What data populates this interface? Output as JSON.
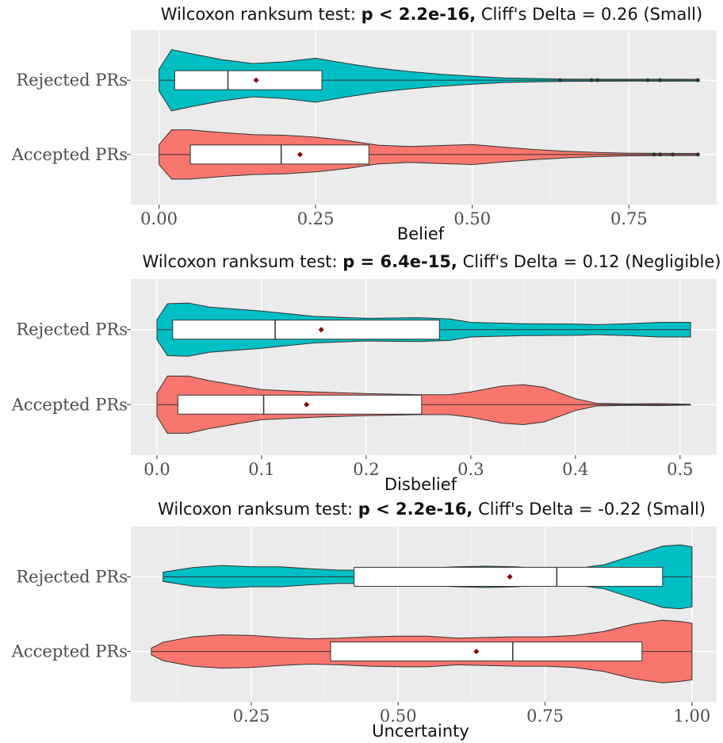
{
  "colors": {
    "rejected": "#00BFC4",
    "accepted": "#F8766D",
    "mean_marker": "#8B0000"
  },
  "chart_data": [
    {
      "type": "violin",
      "title": {
        "prefix": "Wilcoxon ranksum test: ",
        "bold": "p < 2.2e-16,",
        "suffix": " Cliff's Delta = 0.26 (Small)"
      },
      "xlabel": "Belief",
      "xlim": [
        -0.045,
        0.89
      ],
      "ticks": [
        0,
        0.25,
        0.5,
        0.75
      ],
      "tick_labels": [
        "0.00",
        "0.25",
        "0.50",
        "0.75"
      ],
      "grid": true,
      "groups": [
        {
          "name": "Rejected PRs",
          "color": "#00BFC4",
          "violin": [
            [
              0.0,
              0.33
            ],
            [
              0.02,
              0.92
            ],
            [
              0.05,
              0.8
            ],
            [
              0.1,
              0.62
            ],
            [
              0.15,
              0.5
            ],
            [
              0.2,
              0.55
            ],
            [
              0.25,
              0.66
            ],
            [
              0.3,
              0.5
            ],
            [
              0.35,
              0.36
            ],
            [
              0.4,
              0.26
            ],
            [
              0.45,
              0.18
            ],
            [
              0.5,
              0.12
            ],
            [
              0.55,
              0.07
            ],
            [
              0.6,
              0.05
            ],
            [
              0.65,
              0.035
            ],
            [
              0.7,
              0.03
            ],
            [
              0.75,
              0.028
            ],
            [
              0.8,
              0.03
            ],
            [
              0.86,
              0.025
            ]
          ],
          "box": {
            "q1": 0.025,
            "median": 0.11,
            "q3": 0.26,
            "mean": 0.155
          },
          "whiskers": [
            0.0,
            0.86
          ],
          "outliers": [
            0.64,
            0.69,
            0.7,
            0.78,
            0.8,
            0.86
          ]
        },
        {
          "name": "Accepted PRs",
          "color": "#F8766D",
          "violin": [
            [
              0.0,
              0.3
            ],
            [
              0.02,
              0.74
            ],
            [
              0.05,
              0.74
            ],
            [
              0.1,
              0.66
            ],
            [
              0.15,
              0.6
            ],
            [
              0.2,
              0.58
            ],
            [
              0.25,
              0.52
            ],
            [
              0.3,
              0.42
            ],
            [
              0.35,
              0.28
            ],
            [
              0.4,
              0.24
            ],
            [
              0.45,
              0.27
            ],
            [
              0.5,
              0.3
            ],
            [
              0.55,
              0.22
            ],
            [
              0.6,
              0.15
            ],
            [
              0.65,
              0.1
            ],
            [
              0.7,
              0.06
            ],
            [
              0.75,
              0.04
            ],
            [
              0.8,
              0.035
            ],
            [
              0.86,
              0.03
            ]
          ],
          "box": {
            "q1": 0.05,
            "median": 0.195,
            "q3": 0.335,
            "mean": 0.225
          },
          "whiskers": [
            0.0,
            0.86
          ],
          "outliers": [
            0.79,
            0.8,
            0.82,
            0.86
          ]
        }
      ]
    },
    {
      "type": "violin",
      "title": {
        "prefix": "Wilcoxon ranksum test: ",
        "bold": "p = 6.4e-15,",
        "suffix": " Cliff's Delta = 0.12 (Negligible)"
      },
      "xlabel": "Disbelief",
      "xlim": [
        -0.025,
        0.535
      ],
      "ticks": [
        0,
        0.1,
        0.2,
        0.3,
        0.4,
        0.5
      ],
      "tick_labels": [
        "0.0",
        "0.1",
        "0.2",
        "0.3",
        "0.4",
        "0.5"
      ],
      "grid": true,
      "groups": [
        {
          "name": "Rejected PRs",
          "color": "#00BFC4",
          "violin": [
            [
              0.0,
              0.3
            ],
            [
              0.01,
              0.78
            ],
            [
              0.03,
              0.8
            ],
            [
              0.05,
              0.68
            ],
            [
              0.1,
              0.56
            ],
            [
              0.15,
              0.4
            ],
            [
              0.2,
              0.34
            ],
            [
              0.25,
              0.36
            ],
            [
              0.28,
              0.32
            ],
            [
              0.3,
              0.22
            ],
            [
              0.35,
              0.18
            ],
            [
              0.4,
              0.17
            ],
            [
              0.42,
              0.15
            ],
            [
              0.45,
              0.18
            ],
            [
              0.48,
              0.22
            ],
            [
              0.51,
              0.22
            ]
          ],
          "box": {
            "q1": 0.015,
            "median": 0.113,
            "q3": 0.27,
            "mean": 0.157
          },
          "whiskers": [
            0.0,
            0.51
          ],
          "outliers": []
        },
        {
          "name": "Accepted PRs",
          "color": "#F8766D",
          "violin": [
            [
              0.0,
              0.35
            ],
            [
              0.01,
              0.86
            ],
            [
              0.03,
              0.86
            ],
            [
              0.05,
              0.72
            ],
            [
              0.08,
              0.56
            ],
            [
              0.1,
              0.45
            ],
            [
              0.15,
              0.38
            ],
            [
              0.2,
              0.33
            ],
            [
              0.25,
              0.3
            ],
            [
              0.28,
              0.3
            ],
            [
              0.3,
              0.38
            ],
            [
              0.33,
              0.56
            ],
            [
              0.35,
              0.6
            ],
            [
              0.37,
              0.52
            ],
            [
              0.4,
              0.18
            ],
            [
              0.42,
              0.04
            ],
            [
              0.45,
              0.02
            ],
            [
              0.48,
              0.03
            ],
            [
              0.51,
              0.01
            ]
          ],
          "box": {
            "q1": 0.02,
            "median": 0.102,
            "q3": 0.253,
            "mean": 0.143
          },
          "whiskers": [
            0.0,
            0.51
          ],
          "outliers": []
        }
      ]
    },
    {
      "type": "violin",
      "title": {
        "prefix": "Wilcoxon ranksum test: ",
        "bold": "p < 2.2e-16,",
        "suffix": " Cliff's Delta = -0.22 (Small)"
      },
      "xlabel": "Uncertainty",
      "xlim": [
        0.045,
        1.042
      ],
      "ticks": [
        0.25,
        0.5,
        0.75,
        1.0
      ],
      "tick_labels": [
        "0.25",
        "0.50",
        "0.75",
        "1.00"
      ],
      "grid": true,
      "groups": [
        {
          "name": "Rejected PRs",
          "color": "#00BFC4",
          "violin": [
            [
              0.1,
              0.14
            ],
            [
              0.15,
              0.28
            ],
            [
              0.2,
              0.34
            ],
            [
              0.25,
              0.3
            ],
            [
              0.3,
              0.3
            ],
            [
              0.35,
              0.24
            ],
            [
              0.4,
              0.2
            ],
            [
              0.45,
              0.2
            ],
            [
              0.5,
              0.22
            ],
            [
              0.55,
              0.26
            ],
            [
              0.6,
              0.3
            ],
            [
              0.65,
              0.32
            ],
            [
              0.7,
              0.3
            ],
            [
              0.75,
              0.24
            ],
            [
              0.8,
              0.24
            ],
            [
              0.85,
              0.36
            ],
            [
              0.9,
              0.64
            ],
            [
              0.95,
              0.92
            ],
            [
              0.98,
              0.96
            ],
            [
              1.0,
              0.9
            ]
          ],
          "box": {
            "q1": 0.425,
            "median": 0.77,
            "q3": 0.95,
            "mean": 0.69
          },
          "whiskers": [
            0.1,
            1.0
          ],
          "outliers": []
        },
        {
          "name": "Accepted PRs",
          "color": "#F8766D",
          "violin": [
            [
              0.08,
              0.1
            ],
            [
              0.1,
              0.28
            ],
            [
              0.15,
              0.44
            ],
            [
              0.2,
              0.5
            ],
            [
              0.25,
              0.48
            ],
            [
              0.3,
              0.42
            ],
            [
              0.35,
              0.38
            ],
            [
              0.4,
              0.4
            ],
            [
              0.45,
              0.44
            ],
            [
              0.5,
              0.46
            ],
            [
              0.55,
              0.46
            ],
            [
              0.6,
              0.4
            ],
            [
              0.65,
              0.42
            ],
            [
              0.7,
              0.44
            ],
            [
              0.75,
              0.44
            ],
            [
              0.8,
              0.48
            ],
            [
              0.85,
              0.6
            ],
            [
              0.9,
              0.82
            ],
            [
              0.95,
              0.94
            ],
            [
              0.98,
              0.9
            ],
            [
              1.0,
              0.85
            ]
          ],
          "box": {
            "q1": 0.385,
            "median": 0.695,
            "q3": 0.915,
            "mean": 0.633
          },
          "whiskers": [
            0.08,
            1.0
          ],
          "outliers": []
        }
      ]
    }
  ]
}
